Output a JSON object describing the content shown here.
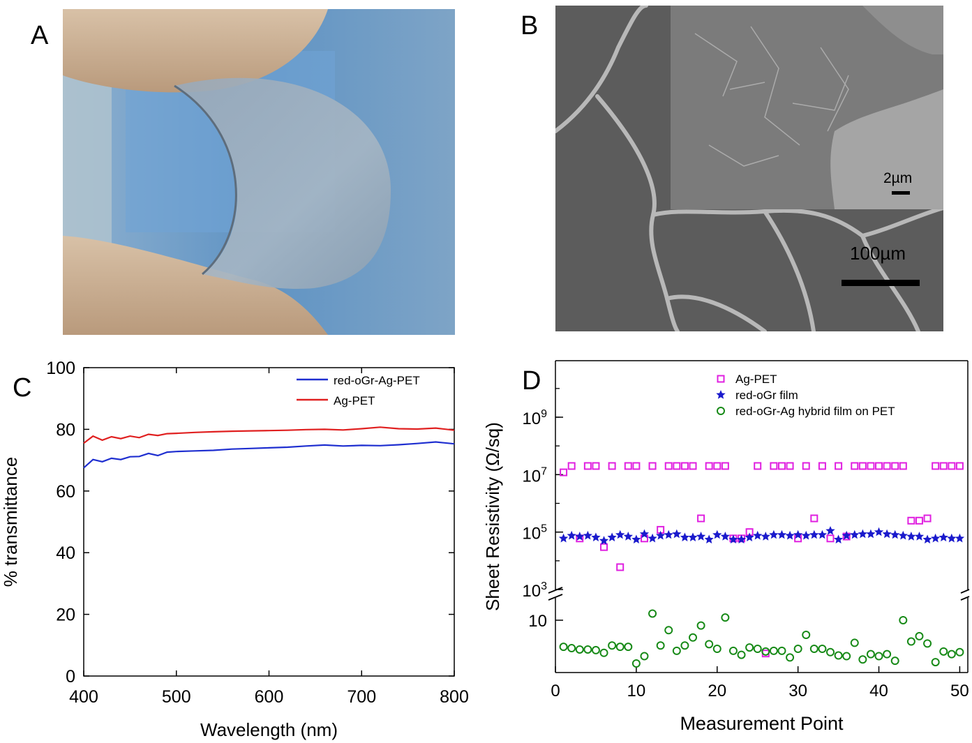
{
  "panels": {
    "a": {
      "letter": "A"
    },
    "b": {
      "letter": "B",
      "inset_scale": "2µm",
      "main_scale": "100µm"
    },
    "c": {
      "letter": "C"
    },
    "d": {
      "letter": "D"
    }
  },
  "colors": {
    "red_oGr_Ag_PET": "#1f2fd0",
    "Ag_PET_c": "#e02020",
    "Ag_PET_d": "#e020e0",
    "red_oGr": "#1a1acc",
    "hybrid": "#178a17"
  },
  "chart_data": [
    {
      "panel": "C",
      "type": "line",
      "xlabel": "Wavelength (nm)",
      "ylabel": "% transmittance",
      "xlim": [
        400,
        800
      ],
      "ylim": [
        0,
        100
      ],
      "xticks": [
        400,
        500,
        600,
        700,
        800
      ],
      "yticks": [
        0,
        20,
        40,
        60,
        80,
        100
      ],
      "legend_position": "top-right",
      "series": [
        {
          "name": "red-oGr-Ag-PET",
          "x": [
            400,
            410,
            420,
            430,
            440,
            450,
            460,
            470,
            480,
            490,
            500,
            520,
            540,
            560,
            580,
            600,
            620,
            640,
            660,
            680,
            700,
            720,
            740,
            760,
            780,
            800
          ],
          "y": [
            67.5,
            70.2,
            69.5,
            70.6,
            70.2,
            71.1,
            71.2,
            72.2,
            71.5,
            72.6,
            72.8,
            73.0,
            73.2,
            73.6,
            73.8,
            74.0,
            74.2,
            74.6,
            74.9,
            74.6,
            74.8,
            74.7,
            75.0,
            75.4,
            75.9,
            75.3
          ]
        },
        {
          "name": "Ag-PET",
          "x": [
            400,
            410,
            420,
            430,
            440,
            450,
            460,
            470,
            480,
            490,
            500,
            520,
            540,
            560,
            580,
            600,
            620,
            640,
            660,
            680,
            700,
            720,
            740,
            760,
            780,
            800
          ],
          "y": [
            75.5,
            77.8,
            76.5,
            77.6,
            77.0,
            77.8,
            77.3,
            78.4,
            78.0,
            78.6,
            78.7,
            79.0,
            79.2,
            79.4,
            79.5,
            79.6,
            79.7,
            79.9,
            80.0,
            79.8,
            80.2,
            80.7,
            80.2,
            80.1,
            80.4,
            79.7
          ]
        }
      ]
    },
    {
      "panel": "D",
      "type": "scatter",
      "xlabel": "Measurement Point",
      "ylabel": "Sheet Resistivity (Ω/sq)",
      "xlim": [
        0,
        51
      ],
      "xticks": [
        0,
        10,
        20,
        30,
        40,
        50
      ],
      "y_scale": "log with axis break",
      "yticks_upper": [
        {
          "base": "10",
          "exp": "3",
          "value": 1000
        },
        {
          "base": "10",
          "exp": "5",
          "value": 100000
        },
        {
          "base": "10",
          "exp": "7",
          "value": 10000000
        },
        {
          "base": "10",
          "exp": "9",
          "value": 1000000000
        }
      ],
      "ytick_lower": "10",
      "legend_position": "top",
      "series": [
        {
          "name": "Ag-PET",
          "marker": "square",
          "x": [
            1,
            2,
            3,
            4,
            5,
            6,
            7,
            8,
            9,
            10,
            11,
            12,
            13,
            14,
            15,
            16,
            17,
            18,
            19,
            20,
            21,
            22,
            23,
            24,
            25,
            26,
            27,
            28,
            29,
            30,
            31,
            32,
            33,
            34,
            35,
            36,
            37,
            38,
            39,
            40,
            41,
            42,
            43,
            44,
            45,
            46,
            47,
            48,
            49,
            50
          ],
          "y": [
            12000000,
            20000000,
            60000,
            20000000,
            20000000,
            30000,
            20000000,
            6000,
            20000000,
            20000000,
            60000,
            20000000,
            120000,
            20000000,
            20000000,
            20000000,
            20000000,
            300000,
            20000000,
            20000000,
            20000000,
            60000,
            60000,
            100000,
            20000000,
            5,
            20000000,
            20000000,
            20000000,
            60000,
            20000000,
            300000,
            20000000,
            60000,
            20000000,
            70000,
            20000000,
            20000000,
            20000000,
            20000000,
            20000000,
            20000000,
            20000000,
            250000,
            250000,
            300000,
            20000000,
            20000000,
            20000000,
            20000000
          ]
        },
        {
          "name": "red-oGr film",
          "marker": "star",
          "x": [
            1,
            2,
            3,
            4,
            5,
            6,
            7,
            8,
            9,
            10,
            11,
            12,
            13,
            14,
            15,
            16,
            17,
            18,
            19,
            20,
            21,
            22,
            23,
            24,
            25,
            26,
            27,
            28,
            29,
            30,
            31,
            32,
            33,
            34,
            35,
            36,
            37,
            38,
            39,
            40,
            41,
            42,
            43,
            44,
            45,
            46,
            47,
            48,
            49,
            50
          ],
          "y": [
            60000,
            75000,
            70000,
            75000,
            65000,
            50000,
            65000,
            80000,
            70000,
            55000,
            85000,
            60000,
            75000,
            80000,
            85000,
            65000,
            65000,
            70000,
            55000,
            80000,
            70000,
            55000,
            55000,
            65000,
            75000,
            70000,
            80000,
            80000,
            75000,
            80000,
            75000,
            80000,
            80000,
            110000,
            55000,
            75000,
            80000,
            85000,
            85000,
            100000,
            85000,
            80000,
            75000,
            70000,
            70000,
            55000,
            60000,
            65000,
            60000,
            60000
          ]
        },
        {
          "name": "red-oGr-Ag hybrid film on PET",
          "marker": "circle",
          "x": [
            1,
            2,
            3,
            4,
            5,
            6,
            7,
            8,
            9,
            10,
            11,
            12,
            13,
            14,
            15,
            16,
            17,
            18,
            19,
            20,
            21,
            22,
            23,
            24,
            25,
            26,
            27,
            28,
            29,
            30,
            31,
            32,
            33,
            34,
            35,
            36,
            37,
            38,
            39,
            40,
            41,
            42,
            43,
            44,
            45,
            46,
            47,
            48,
            49,
            50
          ],
          "y": [
            6,
            5.8,
            5.6,
            5.6,
            5.5,
            5.1,
            6.2,
            6,
            6,
            3.5,
            4.6,
            11,
            6.2,
            8.5,
            5.4,
            6.2,
            7.4,
            9.2,
            6.4,
            5.7,
            10.4,
            5.4,
            4.8,
            5.9,
            5.7,
            5.3,
            5.4,
            5.4,
            4.4,
            5.7,
            7.8,
            5.7,
            5.7,
            5.2,
            4.7,
            4.6,
            6.6,
            4.1,
            4.9,
            4.6,
            4.9,
            3.9,
            10,
            6.8,
            7.6,
            6.5,
            3.7,
            5.3,
            4.9,
            5.2
          ]
        }
      ]
    }
  ]
}
